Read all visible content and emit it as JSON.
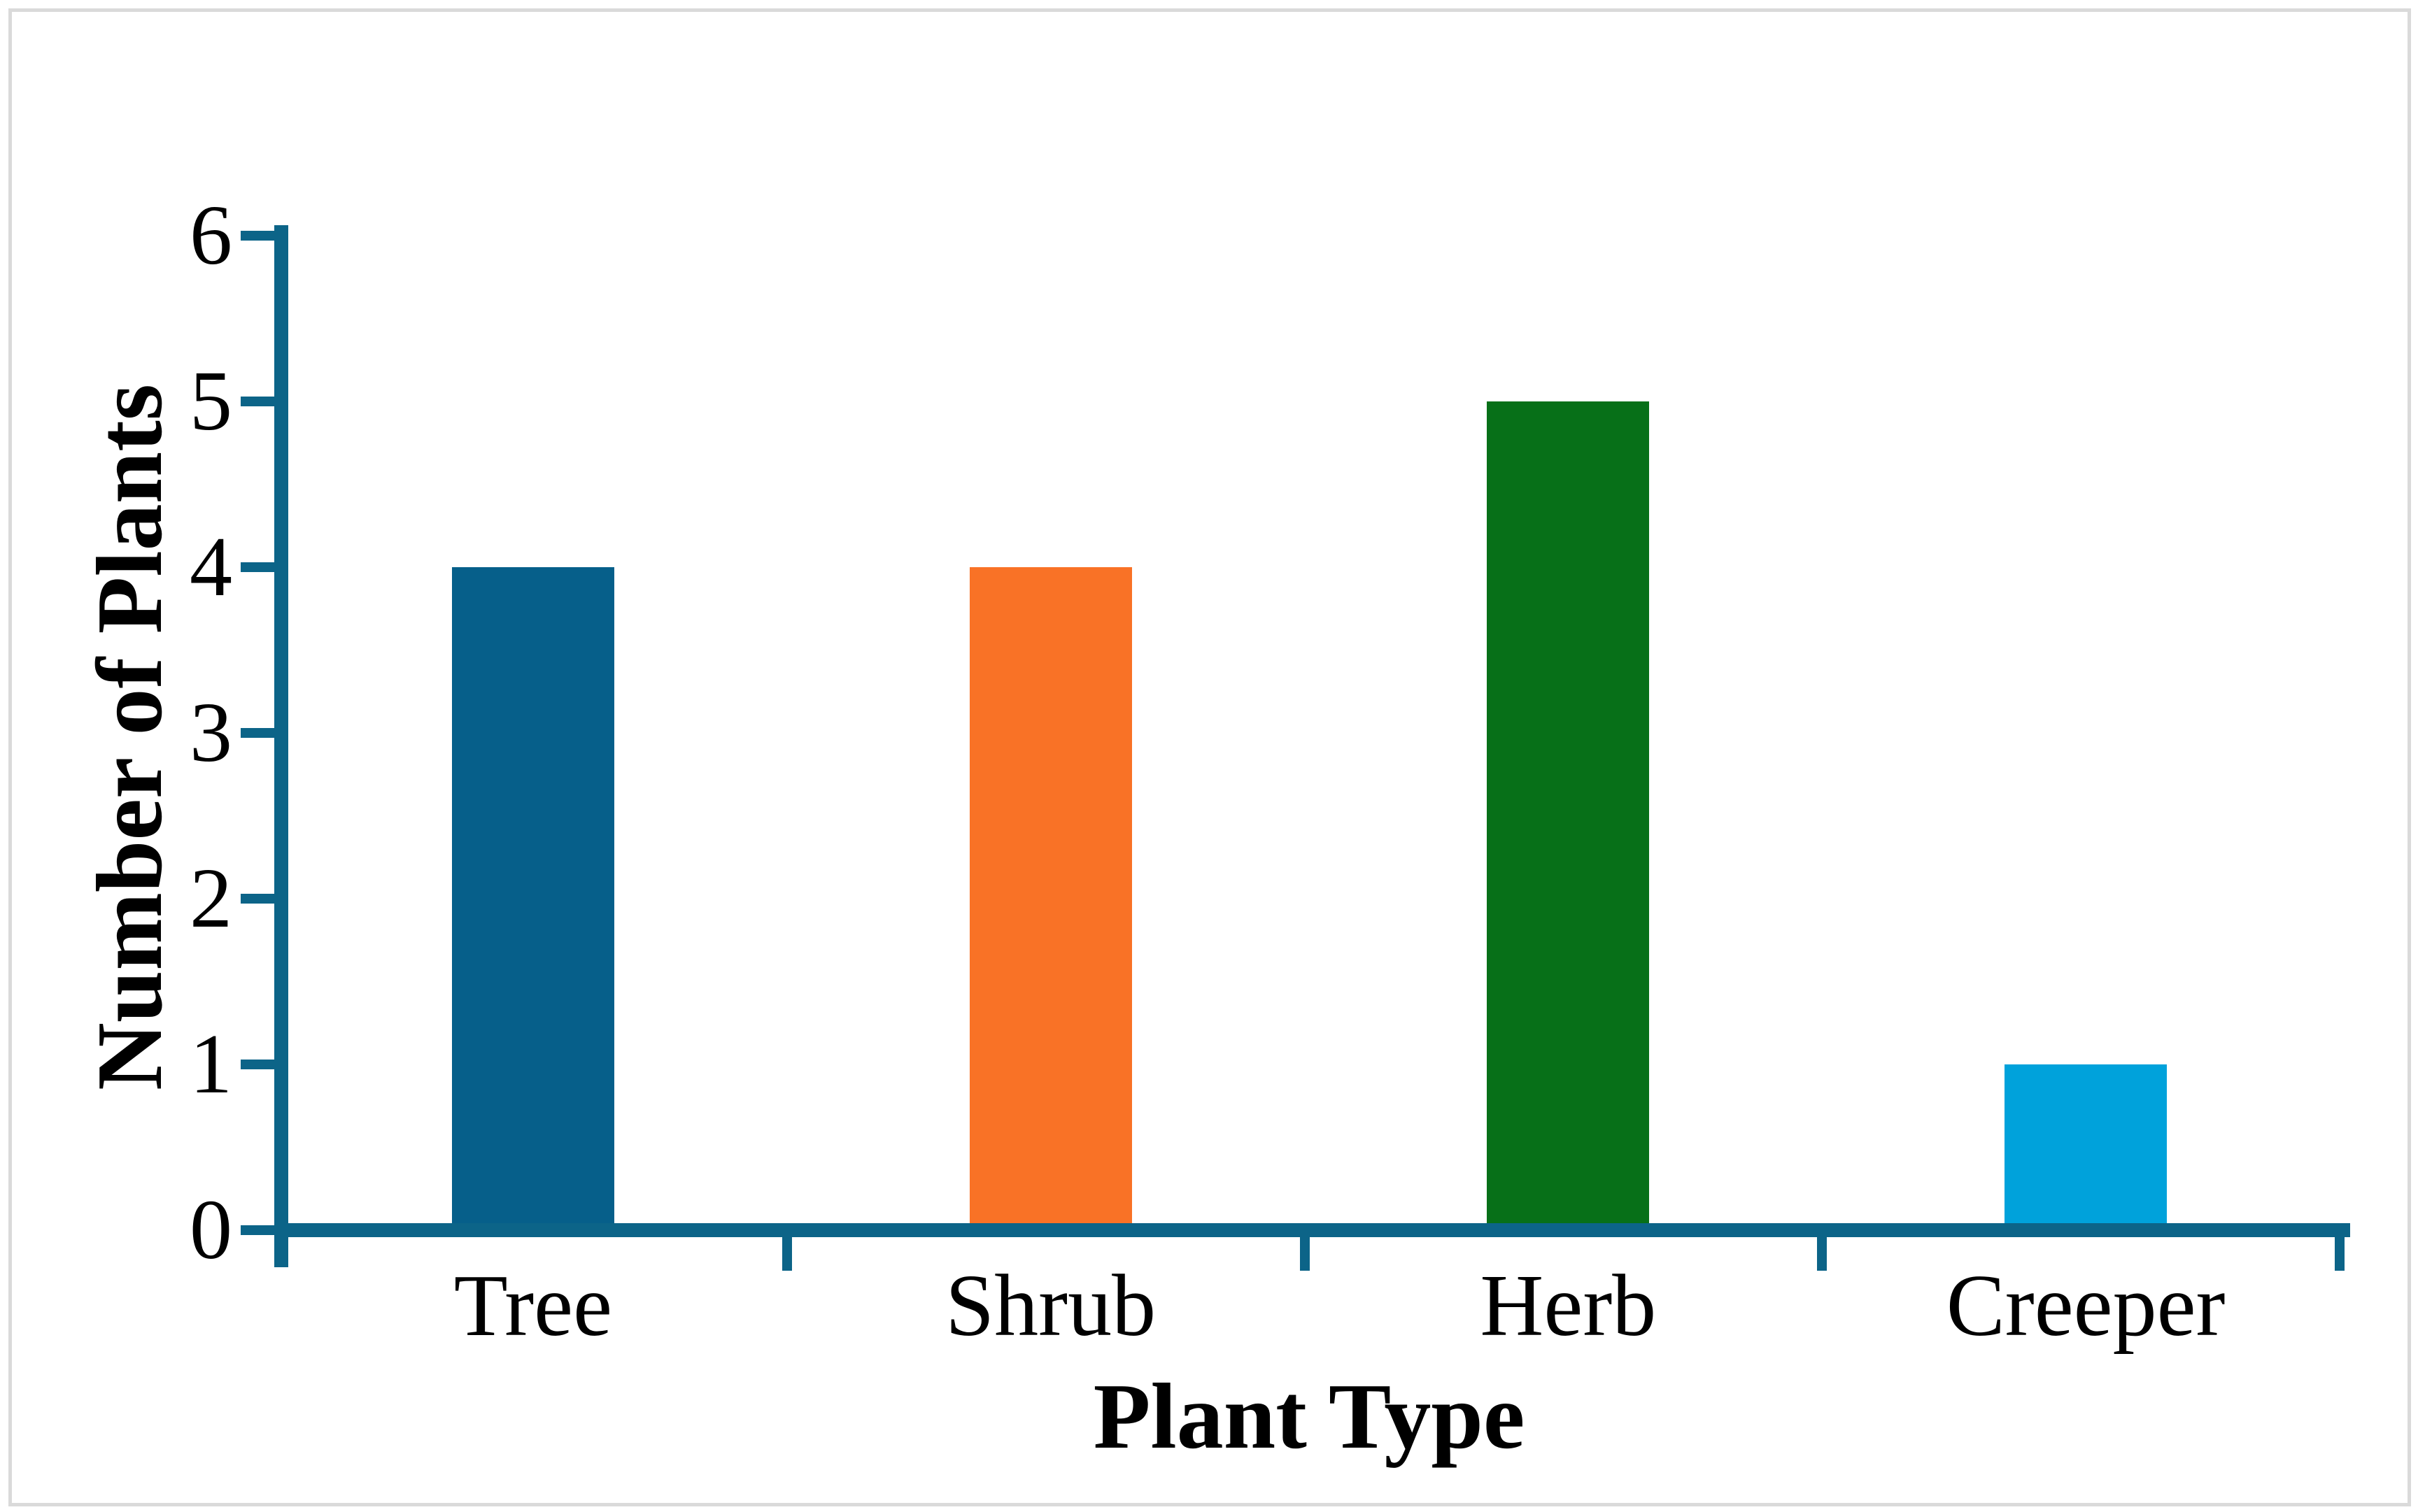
{
  "chart_data": {
    "type": "bar",
    "title": "",
    "xlabel": "Plant Type",
    "ylabel": "Number of Plants",
    "categories": [
      "Tree",
      "Shrub",
      "Herb",
      "Creeper"
    ],
    "values": [
      4,
      4,
      5,
      1
    ],
    "bar_colors": [
      "#065f8a",
      "#f97226",
      "#077018",
      "#00a2db"
    ],
    "y_ticks": [
      "0",
      "1",
      "2",
      "3",
      "4",
      "5",
      "6"
    ],
    "ylim": [
      0,
      6
    ],
    "axis_color": "#0c6488",
    "grid": false,
    "legend_position": "none"
  },
  "frame": {
    "border_color": "#dadada",
    "background_color": "#ffffff"
  }
}
